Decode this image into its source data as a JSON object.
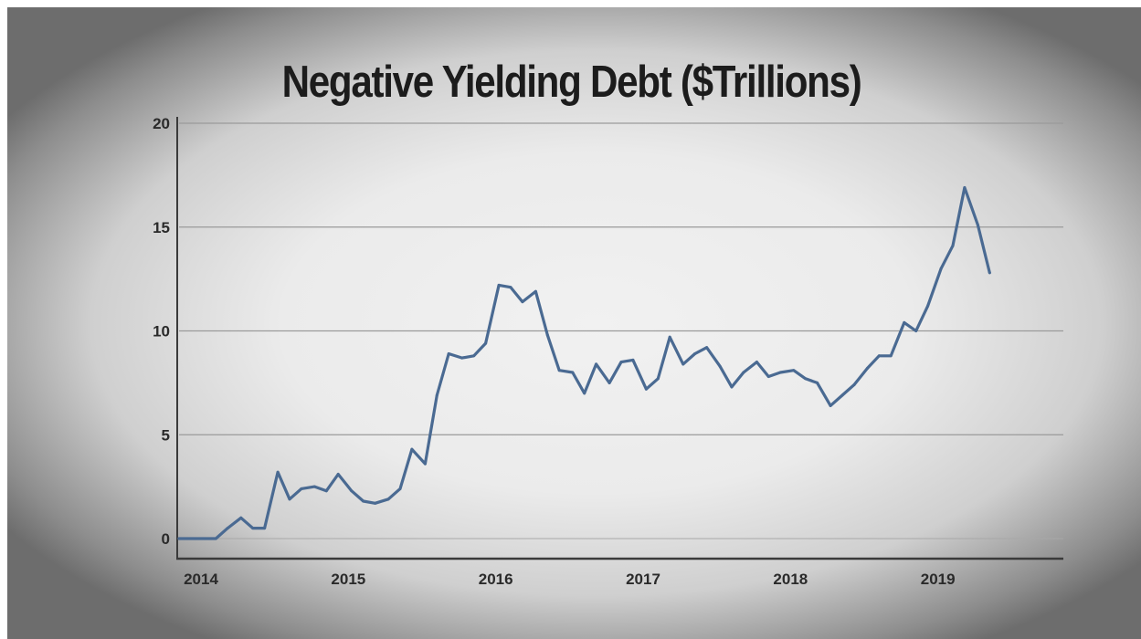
{
  "chart_data": {
    "type": "line",
    "title": "Negative Yielding Debt ($Trillions)",
    "xlabel": "",
    "ylabel": "",
    "xlim": [
      2014.0,
      2020.0
    ],
    "ylim": [
      -1,
      20
    ],
    "grid": "horizontal",
    "legend": "none",
    "y_ticks": [
      {
        "value": 0,
        "label": "0"
      },
      {
        "value": 5,
        "label": "5"
      },
      {
        "value": 10,
        "label": "10"
      },
      {
        "value": 15,
        "label": "15"
      },
      {
        "value": 20,
        "label": "20"
      }
    ],
    "x_ticks": [
      {
        "value": 2014,
        "label": "2014"
      },
      {
        "value": 2015,
        "label": "2015"
      },
      {
        "value": 2016,
        "label": "2016"
      },
      {
        "value": 2017,
        "label": "2017"
      },
      {
        "value": 2018,
        "label": "2018"
      },
      {
        "value": 2019,
        "label": "2019"
      }
    ],
    "series": [
      {
        "color": "#4a6a92",
        "x": [
          2014.0,
          2014.08,
          2014.17,
          2014.25,
          2014.33,
          2014.42,
          2014.5,
          2014.58,
          2014.67,
          2014.75,
          2014.83,
          2014.92,
          2015.0,
          2015.08,
          2015.17,
          2015.25,
          2015.33,
          2015.42,
          2015.5,
          2015.58,
          2015.67,
          2015.75,
          2015.83,
          2015.92,
          2016.0,
          2016.08,
          2016.17,
          2016.25,
          2016.33,
          2016.42,
          2016.5,
          2016.58,
          2016.67,
          2016.75,
          2016.83,
          2016.92,
          2017.0,
          2017.08,
          2017.17,
          2017.25,
          2017.33,
          2017.42,
          2017.5,
          2017.58,
          2017.67,
          2017.75,
          2017.83,
          2017.92,
          2018.0,
          2018.08,
          2018.17,
          2018.25,
          2018.33,
          2018.42,
          2018.5,
          2018.58,
          2018.67,
          2018.75,
          2018.83,
          2018.92,
          2019.0,
          2019.08,
          2019.17,
          2019.25,
          2019.33,
          2019.42,
          2019.5
        ],
        "values": [
          0.0,
          0.0,
          0.0,
          0.0,
          0.5,
          1.0,
          0.5,
          0.5,
          3.2,
          1.9,
          2.4,
          2.5,
          2.3,
          3.1,
          2.3,
          1.8,
          1.7,
          1.9,
          2.4,
          4.3,
          3.6,
          6.9,
          8.9,
          8.7,
          8.8,
          9.4,
          12.2,
          12.1,
          11.4,
          11.9,
          9.8,
          8.1,
          8.0,
          7.0,
          8.4,
          7.5,
          8.5,
          8.6,
          7.2,
          7.7,
          9.7,
          8.4,
          8.9,
          9.2,
          8.3,
          7.3,
          8.0,
          8.5,
          7.8,
          8.0,
          8.1,
          7.7,
          7.5,
          6.4,
          6.9,
          7.4,
          8.2,
          8.8,
          8.8,
          10.4,
          10.0,
          11.2,
          13.0,
          14.1,
          16.9,
          15.1,
          12.8
        ]
      }
    ]
  }
}
